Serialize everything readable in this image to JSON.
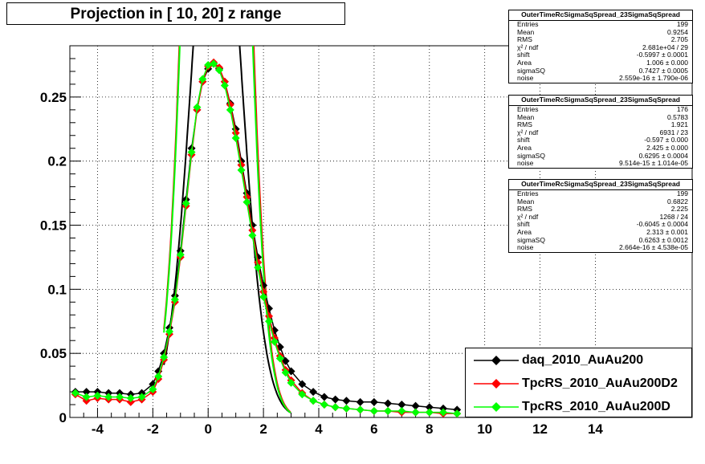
{
  "title": "Projection in [  10,  20] z range",
  "stats": [
    {
      "header": "OuterTimeRcSigmaSqSpread_23SigmaSqSpread",
      "rows": [
        {
          "k": "Entries",
          "v": "199"
        },
        {
          "k": "Mean",
          "v": "0.9254"
        },
        {
          "k": "RMS",
          "v": "2.705"
        },
        {
          "k": "χ² / ndf",
          "v": "2.681e+04 / 29"
        },
        {
          "k": "shift",
          "v": "-0.5997 ± 0.0001"
        },
        {
          "k": "Area",
          "v": "1.006 ± 0.000"
        },
        {
          "k": "sigmaSQ",
          "v": "0.7427 ± 0.0005"
        },
        {
          "k": "noise",
          "v": "2.559e-16 ± 1.790e-06"
        }
      ]
    },
    {
      "header": "OuterTimeRcSigmaSqSpread_23SigmaSqSpread",
      "rows": [
        {
          "k": "Entries",
          "v": "176"
        },
        {
          "k": "Mean",
          "v": "0.5783"
        },
        {
          "k": "RMS",
          "v": "1.921"
        },
        {
          "k": "χ² / ndf",
          "v": "6931 / 23"
        },
        {
          "k": "shift",
          "v": "-0.597 ± 0.000"
        },
        {
          "k": "Area",
          "v": "2.425 ± 0.000"
        },
        {
          "k": "sigmaSQ",
          "v": "0.6295 ± 0.0004"
        },
        {
          "k": "noise",
          "v": "9.514e-15 ± 1.014e-05"
        }
      ]
    },
    {
      "header": "OuterTimeRcSigmaSqSpread_23SigmaSqSpread",
      "rows": [
        {
          "k": "Entries",
          "v": "199"
        },
        {
          "k": "Mean",
          "v": "0.6822"
        },
        {
          "k": "RMS",
          "v": "2.225"
        },
        {
          "k": "χ² / ndf",
          "v": "1268 / 24"
        },
        {
          "k": "shift",
          "v": "-0.6045 ± 0.0004"
        },
        {
          "k": "Area",
          "v": "2.313 ± 0.001"
        },
        {
          "k": "sigmaSQ",
          "v": "0.6263 ± 0.0012"
        },
        {
          "k": "noise",
          "v": "2.664e-16 ± 4.538e-05"
        }
      ]
    }
  ],
  "legend": [
    {
      "label": "daq_2010_AuAu200",
      "color": "#000000"
    },
    {
      "label": "TpcRS_2010_AuAu200D2",
      "color": "#ff0000"
    },
    {
      "label": "TpcRS_2010_AuAu200D",
      "color": "#00ff00"
    }
  ],
  "chart_data": {
    "type": "scatter",
    "xlim": [
      -5,
      17.5
    ],
    "ylim": [
      0,
      0.29
    ],
    "x_ticks": [
      -4,
      -2,
      0,
      2,
      4,
      6,
      8,
      10,
      12,
      14
    ],
    "x_tick_labels": [
      "-4",
      "-2",
      "0",
      "2",
      "4",
      "6",
      "8",
      "10",
      "12",
      "14"
    ],
    "y_ticks": [
      0,
      0.05,
      0.1,
      0.15,
      0.2,
      0.25
    ],
    "y_tick_labels": [
      "0",
      "0.05",
      "0.1",
      "0.15",
      "0.2",
      "0.25"
    ],
    "grid": true,
    "legend_position": "bottom-right",
    "series": [
      {
        "name": "daq_2010_AuAu200",
        "color": "#000000",
        "points": [
          [
            -4.8,
            0.02
          ],
          [
            -4.4,
            0.02
          ],
          [
            -4.0,
            0.02
          ],
          [
            -3.6,
            0.019
          ],
          [
            -3.2,
            0.019
          ],
          [
            -2.8,
            0.018
          ],
          [
            -2.4,
            0.019
          ],
          [
            -2.0,
            0.026
          ],
          [
            -1.8,
            0.036
          ],
          [
            -1.6,
            0.05
          ],
          [
            -1.4,
            0.07
          ],
          [
            -1.2,
            0.095
          ],
          [
            -1.0,
            0.13
          ],
          [
            -0.8,
            0.17
          ],
          [
            -0.6,
            0.21
          ],
          [
            -0.4,
            0.24
          ],
          [
            -0.2,
            0.262
          ],
          [
            0.0,
            0.272
          ],
          [
            0.2,
            0.276
          ],
          [
            0.4,
            0.272
          ],
          [
            0.6,
            0.262
          ],
          [
            0.8,
            0.245
          ],
          [
            1.0,
            0.225
          ],
          [
            1.2,
            0.2
          ],
          [
            1.4,
            0.175
          ],
          [
            1.6,
            0.15
          ],
          [
            1.8,
            0.125
          ],
          [
            2.0,
            0.103
          ],
          [
            2.2,
            0.085
          ],
          [
            2.4,
            0.068
          ],
          [
            2.6,
            0.055
          ],
          [
            2.8,
            0.044
          ],
          [
            3.0,
            0.036
          ],
          [
            3.4,
            0.026
          ],
          [
            3.8,
            0.02
          ],
          [
            4.2,
            0.016
          ],
          [
            4.6,
            0.014
          ],
          [
            5.0,
            0.013
          ],
          [
            5.5,
            0.012
          ],
          [
            6.0,
            0.012
          ],
          [
            6.5,
            0.011
          ],
          [
            7.0,
            0.01
          ],
          [
            7.5,
            0.009
          ],
          [
            8.0,
            0.008
          ],
          [
            8.5,
            0.007
          ],
          [
            9.0,
            0.006
          ]
        ]
      },
      {
        "name": "TpcRS_2010_AuAu200D2",
        "color": "#ff0000",
        "points": [
          [
            -4.8,
            0.018
          ],
          [
            -4.4,
            0.013
          ],
          [
            -4.0,
            0.015
          ],
          [
            -3.6,
            0.014
          ],
          [
            -3.2,
            0.014
          ],
          [
            -2.8,
            0.012
          ],
          [
            -2.4,
            0.014
          ],
          [
            -2.0,
            0.02
          ],
          [
            -1.8,
            0.03
          ],
          [
            -1.6,
            0.045
          ],
          [
            -1.4,
            0.065
          ],
          [
            -1.2,
            0.09
          ],
          [
            -1.0,
            0.125
          ],
          [
            -0.8,
            0.165
          ],
          [
            -0.6,
            0.205
          ],
          [
            -0.4,
            0.24
          ],
          [
            -0.2,
            0.262
          ],
          [
            0.0,
            0.274
          ],
          [
            0.2,
            0.277
          ],
          [
            0.4,
            0.273
          ],
          [
            0.6,
            0.262
          ],
          [
            0.8,
            0.244
          ],
          [
            1.0,
            0.222
          ],
          [
            1.2,
            0.197
          ],
          [
            1.4,
            0.172
          ],
          [
            1.6,
            0.146
          ],
          [
            1.8,
            0.121
          ],
          [
            2.0,
            0.098
          ],
          [
            2.2,
            0.079
          ],
          [
            2.4,
            0.062
          ],
          [
            2.6,
            0.048
          ],
          [
            2.8,
            0.037
          ],
          [
            3.0,
            0.029
          ],
          [
            3.4,
            0.019
          ],
          [
            3.8,
            0.013
          ],
          [
            4.2,
            0.01
          ],
          [
            4.6,
            0.008
          ],
          [
            5.0,
            0.007
          ],
          [
            5.5,
            0.006
          ],
          [
            6.0,
            0.005
          ],
          [
            6.5,
            0.005
          ],
          [
            7.0,
            0.004
          ],
          [
            7.5,
            0.004
          ],
          [
            8.0,
            0.004
          ],
          [
            8.5,
            0.003
          ],
          [
            9.0,
            0.003
          ]
        ]
      },
      {
        "name": "TpcRS_2010_AuAu200D",
        "color": "#00ff00",
        "points": [
          [
            -4.8,
            0.019
          ],
          [
            -4.4,
            0.016
          ],
          [
            -4.0,
            0.017
          ],
          [
            -3.6,
            0.016
          ],
          [
            -3.2,
            0.016
          ],
          [
            -2.8,
            0.015
          ],
          [
            -2.4,
            0.016
          ],
          [
            -2.0,
            0.022
          ],
          [
            -1.8,
            0.032
          ],
          [
            -1.6,
            0.047
          ],
          [
            -1.4,
            0.067
          ],
          [
            -1.2,
            0.092
          ],
          [
            -1.0,
            0.127
          ],
          [
            -0.8,
            0.167
          ],
          [
            -0.6,
            0.207
          ],
          [
            -0.4,
            0.242
          ],
          [
            -0.2,
            0.264
          ],
          [
            0.0,
            0.275
          ],
          [
            0.2,
            0.276
          ],
          [
            0.4,
            0.271
          ],
          [
            0.6,
            0.259
          ],
          [
            0.8,
            0.24
          ],
          [
            1.0,
            0.218
          ],
          [
            1.2,
            0.193
          ],
          [
            1.4,
            0.168
          ],
          [
            1.6,
            0.142
          ],
          [
            1.8,
            0.117
          ],
          [
            2.0,
            0.094
          ],
          [
            2.2,
            0.075
          ],
          [
            2.4,
            0.059
          ],
          [
            2.6,
            0.046
          ],
          [
            2.8,
            0.035
          ],
          [
            3.0,
            0.027
          ],
          [
            3.4,
            0.018
          ],
          [
            3.8,
            0.013
          ],
          [
            4.2,
            0.01
          ],
          [
            4.6,
            0.008
          ],
          [
            5.0,
            0.007
          ],
          [
            5.5,
            0.006
          ],
          [
            6.0,
            0.005
          ],
          [
            6.5,
            0.005
          ],
          [
            7.0,
            0.005
          ],
          [
            7.5,
            0.004
          ],
          [
            8.0,
            0.004
          ],
          [
            8.5,
            0.004
          ],
          [
            9.0,
            0.003
          ]
        ]
      }
    ],
    "fits": [
      {
        "name": "daq_2010_AuAu200",
        "color": "#000000",
        "shift": -0.5997,
        "area": 1.006,
        "sigmaSQ": 0.7427
      },
      {
        "name": "TpcRS_2010_AuAu200D2",
        "color": "#ff0000",
        "shift": -0.597,
        "area": 2.425,
        "sigmaSQ": 0.6295
      },
      {
        "name": "TpcRS_2010_AuAu200D",
        "color": "#00ff00",
        "shift": -0.6045,
        "area": 2.313,
        "sigmaSQ": 0.6263
      }
    ]
  }
}
